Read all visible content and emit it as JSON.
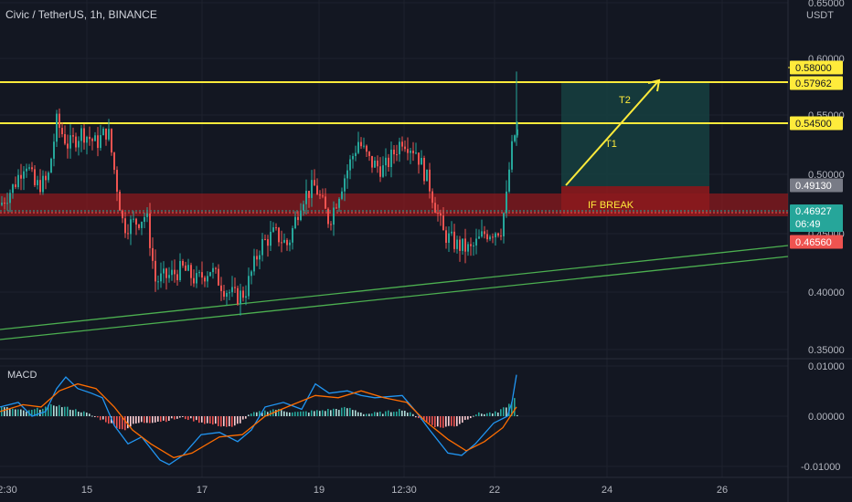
{
  "header": {
    "title": "Civic / TetherUS, 1h, BINANCE"
  },
  "macd": {
    "label": "MACD"
  },
  "price_axis": {
    "currency": "USDT",
    "ticks": [
      "0.65000",
      "0.60000",
      "0.55000",
      "0.50000",
      "0.45000",
      "0.40000",
      "0.35000"
    ],
    "tags": {
      "level_high": "0.58000",
      "level_t2": "0.57962",
      "level_t1": "0.54500",
      "level_break": "0.49130",
      "last_price": "0.46927",
      "countdown": "06:49",
      "level_stop": "0.46560"
    }
  },
  "macd_axis": {
    "ticks": [
      "0.01000",
      "0.00000",
      "-0.01000"
    ]
  },
  "time_axis": {
    "ticks": [
      "2:30",
      "15",
      "17",
      "19",
      "12:30",
      "22",
      "24",
      "26"
    ]
  },
  "annotations": {
    "t1": "T1",
    "t2": "T2",
    "break": "IF BREAK"
  },
  "colors": {
    "background": "#131722",
    "candle_up": "#26a69a",
    "candle_down": "#ef5350",
    "line_yellow": "#ffeb3b",
    "line_green": "#4caf50",
    "box_red": "#8b1a1d",
    "box_teal": "#16403f",
    "macd_line": "#2196f3",
    "signal_line": "#ff6d00"
  }
}
